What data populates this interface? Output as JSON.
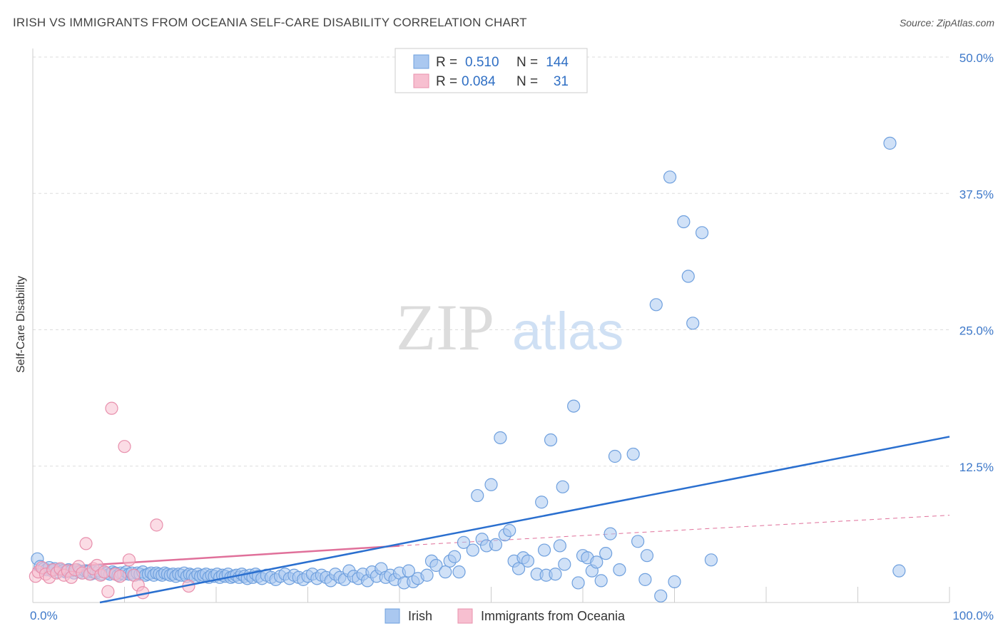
{
  "header": {
    "title": "IRISH VS IMMIGRANTS FROM OCEANIA SELF-CARE DISABILITY CORRELATION CHART",
    "source": "Source: ZipAtlas.com"
  },
  "watermark": {
    "zip": "ZIP",
    "atlas": "atlas"
  },
  "colors": {
    "irish_fill": "#aac8f0",
    "irish_stroke": "#6fa0de",
    "irish_line": "#2a6fcf",
    "oceania_fill": "#f7bfd0",
    "oceania_stroke": "#e890ad",
    "oceania_line": "#e0709a",
    "tick_text": "#3d78c9",
    "grid": "#dddddd"
  },
  "legend": {
    "rows": [
      {
        "r_label": "R =",
        "r_value": "0.510",
        "n_label": "N =",
        "n_value": "144"
      },
      {
        "r_label": "R =",
        "r_value": "0.084",
        "n_label": "N =",
        "n_value": "31"
      }
    ]
  },
  "chart_data": {
    "type": "scatter",
    "title": "IRISH VS IMMIGRANTS FROM OCEANIA SELF-CARE DISABILITY CORRELATION CHART",
    "ylabel": "Self-Care Disability",
    "xlim": [
      0,
      100
    ],
    "ylim": [
      0,
      50
    ],
    "x_ticks": [
      "0.0%",
      "100.0%"
    ],
    "y_ticks": [
      {
        "value": 12.5,
        "label": "12.5%"
      },
      {
        "value": 25,
        "label": "25.0%"
      },
      {
        "value": 37.5,
        "label": "37.5%"
      },
      {
        "value": 50,
        "label": "50.0%"
      }
    ],
    "grid": true,
    "series": [
      {
        "name": "Irish",
        "R": 0.51,
        "N": 144,
        "trend": {
          "x": [
            0,
            100
          ],
          "y": [
            -1.2,
            15.2
          ]
        },
        "points": [
          [
            0.5,
            4
          ],
          [
            0.8,
            3.3
          ],
          [
            1.2,
            3.1
          ],
          [
            1.5,
            3
          ],
          [
            1.8,
            3.2
          ],
          [
            2.1,
            2.9
          ],
          [
            2.4,
            3.1
          ],
          [
            2.7,
            2.8
          ],
          [
            3,
            3
          ],
          [
            3.3,
            2.9
          ],
          [
            3.6,
            2.8
          ],
          [
            3.9,
            3
          ],
          [
            4.2,
            2.9
          ],
          [
            4.5,
            2.7
          ],
          [
            4.8,
            3
          ],
          [
            5.1,
            2.8
          ],
          [
            5.4,
            2.7
          ],
          [
            5.7,
            2.9
          ],
          [
            6,
            2.8
          ],
          [
            6.3,
            2.6
          ],
          [
            6.6,
            2.8
          ],
          [
            6.9,
            2.7
          ],
          [
            7.2,
            2.9
          ],
          [
            7.5,
            2.6
          ],
          [
            7.8,
            2.8
          ],
          [
            8.1,
            2.7
          ],
          [
            8.4,
            2.6
          ],
          [
            8.7,
            2.8
          ],
          [
            9,
            2.7
          ],
          [
            9.3,
            2.5
          ],
          [
            9.6,
            2.7
          ],
          [
            9.9,
            2.6
          ],
          [
            10.2,
            2.8
          ],
          [
            10.5,
            2.6
          ],
          [
            10.8,
            2.7
          ],
          [
            11.1,
            2.5
          ],
          [
            11.4,
            2.7
          ],
          [
            11.7,
            2.6
          ],
          [
            12,
            2.8
          ],
          [
            12.3,
            2.5
          ],
          [
            12.6,
            2.6
          ],
          [
            12.9,
            2.7
          ],
          [
            13.2,
            2.5
          ],
          [
            13.5,
            2.7
          ],
          [
            13.8,
            2.6
          ],
          [
            14.1,
            2.5
          ],
          [
            14.4,
            2.7
          ],
          [
            14.7,
            2.6
          ],
          [
            15,
            2.5
          ],
          [
            15.3,
            2.6
          ],
          [
            15.6,
            2.4
          ],
          [
            15.9,
            2.6
          ],
          [
            16.2,
            2.5
          ],
          [
            16.5,
            2.7
          ],
          [
            16.8,
            2.4
          ],
          [
            17.1,
            2.6
          ],
          [
            17.4,
            2.5
          ],
          [
            17.7,
            2.3
          ],
          [
            18,
            2.6
          ],
          [
            18.3,
            2.4
          ],
          [
            18.6,
            2.5
          ],
          [
            18.9,
            2.6
          ],
          [
            19.2,
            2.3
          ],
          [
            19.5,
            2.5
          ],
          [
            19.8,
            2.4
          ],
          [
            20.1,
            2.6
          ],
          [
            20.4,
            2.3
          ],
          [
            20.7,
            2.5
          ],
          [
            21,
            2.4
          ],
          [
            21.3,
            2.6
          ],
          [
            21.6,
            2.3
          ],
          [
            21.9,
            2.4
          ],
          [
            22.2,
            2.5
          ],
          [
            22.5,
            2.3
          ],
          [
            22.8,
            2.6
          ],
          [
            23.1,
            2.4
          ],
          [
            23.4,
            2.2
          ],
          [
            23.7,
            2.5
          ],
          [
            24,
            2.3
          ],
          [
            24.3,
            2.6
          ],
          [
            24.6,
            2.4
          ],
          [
            25,
            2.2
          ],
          [
            25.5,
            2.5
          ],
          [
            26,
            2.3
          ],
          [
            26.5,
            2.1
          ],
          [
            27,
            2.4
          ],
          [
            27.5,
            2.6
          ],
          [
            28,
            2.2
          ],
          [
            28.5,
            2.5
          ],
          [
            29,
            2.3
          ],
          [
            29.5,
            2.1
          ],
          [
            30,
            2.4
          ],
          [
            30.5,
            2.6
          ],
          [
            31,
            2.2
          ],
          [
            31.5,
            2.5
          ],
          [
            32,
            2.3
          ],
          [
            32.5,
            2
          ],
          [
            33,
            2.6
          ],
          [
            33.5,
            2.3
          ],
          [
            34,
            2.1
          ],
          [
            34.5,
            2.9
          ],
          [
            35,
            2.4
          ],
          [
            35.5,
            2.2
          ],
          [
            36,
            2.6
          ],
          [
            36.5,
            2
          ],
          [
            37,
            2.8
          ],
          [
            37.5,
            2.4
          ],
          [
            38,
            3.1
          ],
          [
            38.5,
            2.3
          ],
          [
            39,
            2.5
          ],
          [
            39.5,
            2.1
          ],
          [
            40,
            2.7
          ],
          [
            40.5,
            1.8
          ],
          [
            41,
            2.9
          ],
          [
            41.5,
            1.9
          ],
          [
            42,
            2.2
          ],
          [
            43,
            2.5
          ],
          [
            43.5,
            3.8
          ],
          [
            44,
            3.4
          ],
          [
            45,
            2.8
          ],
          [
            45.5,
            3.8
          ],
          [
            46,
            4.2
          ],
          [
            46.5,
            2.8
          ],
          [
            47,
            5.5
          ],
          [
            48,
            4.8
          ],
          [
            48.5,
            9.8
          ],
          [
            49,
            5.8
          ],
          [
            49.5,
            5.2
          ],
          [
            50,
            10.8
          ],
          [
            50.5,
            5.3
          ],
          [
            51,
            15.1
          ],
          [
            51.5,
            6.2
          ],
          [
            52,
            6.6
          ],
          [
            52.5,
            3.8
          ],
          [
            53,
            3.1
          ],
          [
            53.5,
            4.1
          ],
          [
            54,
            3.8
          ],
          [
            55,
            2.6
          ],
          [
            55.5,
            9.2
          ],
          [
            55.8,
            4.8
          ],
          [
            56,
            2.5
          ],
          [
            56.5,
            14.9
          ],
          [
            57,
            2.6
          ],
          [
            57.5,
            5.2
          ],
          [
            57.8,
            10.6
          ],
          [
            58,
            3.5
          ],
          [
            59,
            18
          ],
          [
            59.5,
            1.8
          ],
          [
            60,
            4.3
          ],
          [
            60.5,
            4.1
          ],
          [
            61,
            2.9
          ],
          [
            61.5,
            3.7
          ],
          [
            62,
            2
          ],
          [
            62.5,
            4.5
          ],
          [
            63,
            6.3
          ],
          [
            63.5,
            13.4
          ],
          [
            64,
            3
          ],
          [
            65.5,
            13.6
          ],
          [
            66,
            5.6
          ],
          [
            66.8,
            2.1
          ],
          [
            67,
            4.3
          ],
          [
            68,
            27.3
          ],
          [
            68.5,
            0.6
          ],
          [
            69.5,
            39
          ],
          [
            70,
            1.9
          ],
          [
            71,
            34.9
          ],
          [
            71.5,
            29.9
          ],
          [
            72,
            25.6
          ],
          [
            73,
            33.9
          ],
          [
            74,
            3.9
          ],
          [
            93.5,
            42.1
          ],
          [
            94.5,
            2.9
          ]
        ]
      },
      {
        "name": "Immigrants from Oceania",
        "R": 0.084,
        "N": 31,
        "trend": {
          "x": [
            0,
            40
          ],
          "y": [
            3.1,
            5.2
          ]
        },
        "trend_extension": {
          "x": [
            40,
            100
          ],
          "y": [
            5.2,
            8.0
          ]
        },
        "points": [
          [
            0.3,
            2.4
          ],
          [
            0.6,
            2.8
          ],
          [
            1,
            3.2
          ],
          [
            1.4,
            2.6
          ],
          [
            1.8,
            2.3
          ],
          [
            2.2,
            3
          ],
          [
            2.6,
            2.7
          ],
          [
            3,
            3.1
          ],
          [
            3.4,
            2.5
          ],
          [
            3.8,
            2.9
          ],
          [
            4.2,
            2.3
          ],
          [
            4.6,
            3
          ],
          [
            5,
            3.3
          ],
          [
            5.4,
            2.7
          ],
          [
            5.8,
            5.4
          ],
          [
            6.2,
            2.6
          ],
          [
            6.6,
            3.1
          ],
          [
            7,
            3.4
          ],
          [
            7.4,
            2.5
          ],
          [
            7.8,
            2.8
          ],
          [
            8.2,
            1
          ],
          [
            8.6,
            17.8
          ],
          [
            9,
            2.6
          ],
          [
            9.5,
            2.4
          ],
          [
            10,
            14.3
          ],
          [
            10.5,
            3.9
          ],
          [
            11,
            2.5
          ],
          [
            11.5,
            1.6
          ],
          [
            12,
            0.9
          ],
          [
            13.5,
            7.1
          ],
          [
            17,
            1.5
          ]
        ]
      }
    ]
  },
  "bottom_legend": [
    {
      "label": "Irish"
    },
    {
      "label": "Immigrants from Oceania"
    }
  ]
}
